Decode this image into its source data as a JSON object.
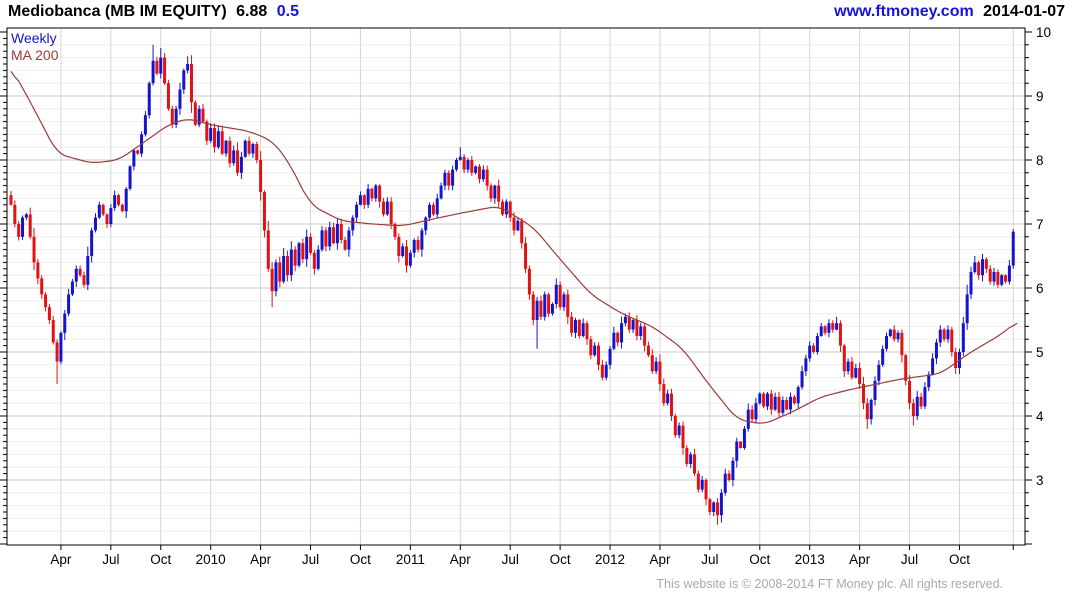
{
  "header": {
    "title": "Mediobanca (MB IM EQUITY)",
    "price": "6.88",
    "change": "0.5",
    "site": "www.ftmoney.com",
    "date": "2014-01-07"
  },
  "legend": {
    "interval": "Weekly",
    "ma": "MA 200"
  },
  "footer": {
    "copyright": "This website is © 2008-2014 FT Money plc. All rights reserved."
  },
  "colors": {
    "up": "#1414cc",
    "down": "#e01212",
    "ma": "#9a3c38",
    "link_blue": "#1414e0",
    "grid_minor": "#ededed",
    "grid_major": "#c9c9c9",
    "grid_vertical": "#d6d6d6",
    "axis": "#000000",
    "label": "#000000",
    "footer_gray": "#a9a9a9"
  },
  "chart_data": {
    "type": "candlestick",
    "title": "Mediobanca (MB IM EQUITY)",
    "interval": "Weekly",
    "overlay": "MA 200",
    "last_price": 6.88,
    "change": 0.5,
    "as_of_date": "2014-01-07",
    "y_axis": {
      "side": "right",
      "min": 2.0,
      "max": 10.06,
      "major_ticks": [
        3,
        4,
        5,
        6,
        7,
        8,
        9,
        10
      ],
      "minor_step": 0.2
    },
    "x_axis": {
      "weeks_total": 262,
      "first_week_open": 7.45,
      "ticks": [
        {
          "week": 13,
          "label": "Apr"
        },
        {
          "week": 26,
          "label": "Jul"
        },
        {
          "week": 39,
          "label": "Oct"
        },
        {
          "week": 52,
          "label": "2010"
        },
        {
          "week": 65,
          "label": "Apr"
        },
        {
          "week": 78,
          "label": "Jul"
        },
        {
          "week": 91,
          "label": "Oct"
        },
        {
          "week": 104,
          "label": "2011"
        },
        {
          "week": 117,
          "label": "Apr"
        },
        {
          "week": 130,
          "label": "Jul"
        },
        {
          "week": 143,
          "label": "Oct"
        },
        {
          "week": 156,
          "label": "2012"
        },
        {
          "week": 169,
          "label": "Apr"
        },
        {
          "week": 182,
          "label": "Jul"
        },
        {
          "week": 195,
          "label": "Oct"
        },
        {
          "week": 208,
          "label": "2013"
        },
        {
          "week": 221,
          "label": "Apr"
        },
        {
          "week": 234,
          "label": "Jul"
        },
        {
          "week": 247,
          "label": "Oct"
        },
        {
          "week": 261,
          "label": ""
        }
      ]
    },
    "weekly_closes": [
      7.3,
      7.0,
      6.8,
      7.1,
      7.15,
      6.8,
      6.4,
      6.15,
      5.9,
      5.7,
      5.5,
      5.15,
      4.85,
      5.3,
      5.6,
      5.9,
      6.1,
      6.3,
      6.2,
      6.05,
      6.5,
      6.9,
      7.1,
      7.3,
      7.15,
      7.0,
      7.25,
      7.45,
      7.3,
      7.2,
      7.55,
      7.9,
      8.15,
      8.1,
      8.4,
      8.7,
      9.2,
      9.55,
      9.35,
      9.6,
      9.2,
      8.8,
      8.55,
      8.8,
      9.1,
      9.4,
      9.5,
      8.9,
      8.55,
      8.8,
      8.6,
      8.3,
      8.5,
      8.2,
      8.45,
      8.1,
      8.3,
      7.95,
      8.15,
      7.8,
      8.05,
      8.3,
      8.1,
      8.25,
      8.0,
      7.5,
      6.9,
      6.3,
      5.95,
      6.4,
      6.1,
      6.5,
      6.2,
      6.6,
      6.35,
      6.7,
      6.45,
      6.8,
      6.55,
      6.3,
      6.6,
      6.9,
      6.65,
      6.95,
      6.7,
      7.0,
      6.75,
      6.6,
      6.9,
      7.1,
      7.3,
      7.45,
      7.3,
      7.55,
      7.4,
      7.6,
      7.35,
      7.15,
      7.35,
      7.0,
      6.8,
      6.5,
      6.65,
      6.35,
      6.55,
      6.75,
      6.6,
      6.9,
      7.1,
      7.3,
      7.15,
      7.4,
      7.6,
      7.8,
      7.6,
      7.85,
      8.0,
      8.05,
      7.85,
      8.0,
      7.8,
      7.9,
      7.7,
      7.85,
      7.6,
      7.4,
      7.6,
      7.35,
      7.15,
      7.35,
      7.1,
      6.9,
      7.05,
      6.7,
      6.3,
      5.9,
      5.5,
      5.8,
      5.55,
      5.9,
      5.6,
      5.75,
      6.05,
      5.7,
      5.9,
      5.55,
      5.3,
      5.5,
      5.25,
      5.45,
      5.2,
      4.95,
      5.1,
      4.8,
      4.6,
      4.8,
      5.05,
      5.3,
      5.15,
      5.45,
      5.55,
      5.35,
      5.5,
      5.25,
      5.4,
      5.1,
      4.95,
      4.7,
      4.85,
      4.5,
      4.2,
      4.35,
      4.0,
      3.7,
      3.85,
      3.5,
      3.25,
      3.4,
      3.1,
      2.85,
      3.0,
      2.7,
      2.5,
      2.65,
      2.45,
      2.8,
      3.1,
      3.0,
      3.3,
      3.6,
      3.5,
      3.8,
      4.1,
      3.95,
      4.2,
      4.35,
      4.15,
      4.35,
      4.1,
      4.3,
      4.05,
      4.25,
      4.1,
      4.3,
      4.2,
      4.45,
      4.7,
      4.9,
      5.1,
      5.0,
      5.25,
      5.4,
      5.3,
      5.45,
      5.35,
      5.45,
      5.1,
      4.7,
      4.85,
      4.6,
      4.75,
      4.5,
      4.2,
      3.95,
      4.25,
      4.55,
      4.8,
      5.05,
      5.25,
      5.35,
      5.2,
      5.3,
      4.95,
      4.55,
      4.2,
      4.0,
      4.3,
      4.15,
      4.45,
      4.65,
      4.9,
      5.15,
      5.35,
      5.2,
      5.35,
      5.0,
      4.75,
      5.0,
      5.45,
      5.9,
      6.25,
      6.4,
      6.2,
      6.45,
      6.3,
      6.1,
      6.25,
      6.05,
      6.2,
      6.1,
      6.35,
      6.88
    ],
    "wick_overrides": {
      "high": {
        "37": 9.8,
        "39": 9.75,
        "46": 9.62,
        "117": 8.2,
        "161": 5.62,
        "215": 5.55,
        "251": 6.5,
        "261": 6.92
      },
      "low": {
        "12": 4.5,
        "68": 5.7,
        "137": 5.05,
        "184": 2.3,
        "223": 3.8,
        "235": 3.85,
        "261": 6.3
      }
    },
    "ma200_keyframes": [
      [
        0,
        9.45
      ],
      [
        6,
        8.8
      ],
      [
        12,
        8.1
      ],
      [
        21,
        7.95
      ],
      [
        28,
        8.0
      ],
      [
        34,
        8.25
      ],
      [
        41,
        8.55
      ],
      [
        46,
        8.65
      ],
      [
        52,
        8.55
      ],
      [
        62,
        8.45
      ],
      [
        68,
        8.3
      ],
      [
        72,
        8.0
      ],
      [
        78,
        7.3
      ],
      [
        86,
        7.05
      ],
      [
        94,
        7.0
      ],
      [
        102,
        6.97
      ],
      [
        110,
        7.08
      ],
      [
        118,
        7.18
      ],
      [
        127,
        7.28
      ],
      [
        136,
        6.95
      ],
      [
        143,
        6.45
      ],
      [
        151,
        5.9
      ],
      [
        159,
        5.6
      ],
      [
        167,
        5.4
      ],
      [
        175,
        5.05
      ],
      [
        181,
        4.55
      ],
      [
        189,
        3.95
      ],
      [
        196,
        3.87
      ],
      [
        203,
        4.05
      ],
      [
        211,
        4.3
      ],
      [
        219,
        4.42
      ],
      [
        232,
        4.58
      ],
      [
        242,
        4.66
      ],
      [
        250,
        5.0
      ],
      [
        258,
        5.28
      ],
      [
        262,
        5.48
      ]
    ]
  }
}
